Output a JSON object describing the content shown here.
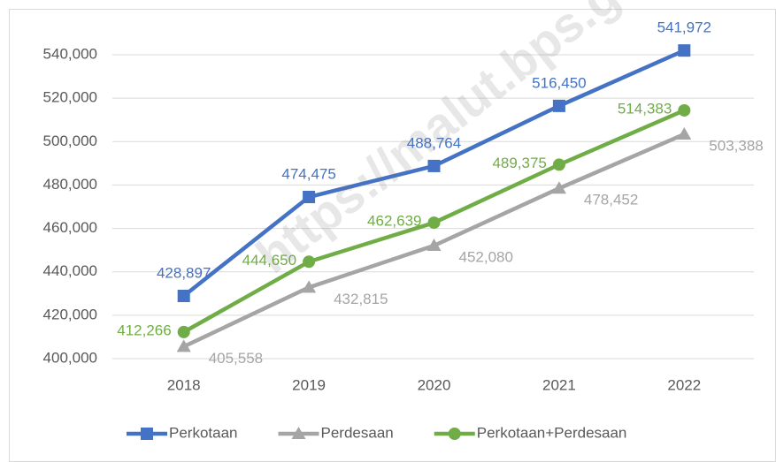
{
  "chart_data": {
    "type": "line",
    "watermark": "https://malut.bps.go.id",
    "categories": [
      "2018",
      "2019",
      "2020",
      "2021",
      "2022"
    ],
    "series": [
      {
        "name": "Perkotaan",
        "color": "#4472c4",
        "marker": "square",
        "values": [
          428897,
          474475,
          488764,
          516450,
          541972
        ],
        "value_labels": [
          "428,897",
          "474,475",
          "488,764",
          "516,450",
          "541,972"
        ]
      },
      {
        "name": "Perdesaan",
        "color": "#a5a5a5",
        "marker": "triangle",
        "values": [
          405558,
          432815,
          452080,
          478452,
          503388
        ],
        "value_labels": [
          "405,558",
          "432,815",
          "452,080",
          "478,452",
          "503,388"
        ]
      },
      {
        "name": "Perkotaan+Perdesaan",
        "color": "#70ad47",
        "marker": "circle",
        "values": [
          412266,
          444650,
          462639,
          489375,
          514383
        ],
        "value_labels": [
          "412,266",
          "444,650",
          "462,639",
          "489,375",
          "514,383"
        ]
      }
    ],
    "ylim": [
      400000,
      540000
    ],
    "yticks": [
      {
        "value": 400000,
        "label": "400,000"
      },
      {
        "value": 420000,
        "label": "420,000"
      },
      {
        "value": 440000,
        "label": "440,000"
      },
      {
        "value": 460000,
        "label": "460,000"
      },
      {
        "value": 480000,
        "label": "480,000"
      },
      {
        "value": 500000,
        "label": "500,000"
      },
      {
        "value": 520000,
        "label": "520,000"
      },
      {
        "value": 540000,
        "label": "540,000"
      }
    ],
    "grid": true,
    "legend": "bottom"
  }
}
